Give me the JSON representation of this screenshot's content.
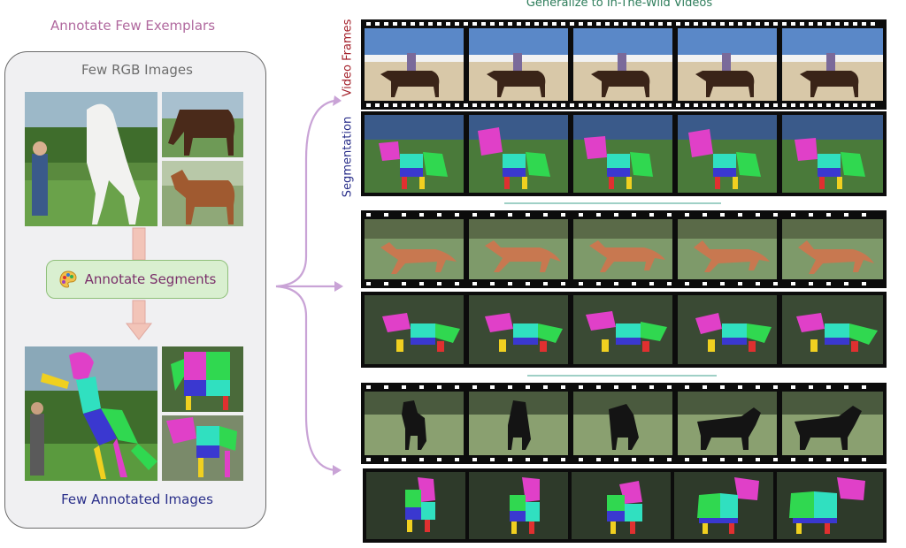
{
  "left": {
    "title": "Annotate Few Exemplars",
    "panel_header": "Few RGB Images",
    "action_label": "Annotate Segments",
    "panel_footer": "Few Annotated Images",
    "action_icon": "palette-icon"
  },
  "right": {
    "title": "Generalize to In-The-Wild Videos",
    "row_label_video": "Video Frames",
    "row_label_seg": "Segmentation"
  },
  "colors": {
    "left_title": "#b0689e",
    "right_title": "#2e7d5b",
    "arrow": "#c9a3d6",
    "connector": "#e0a8a0",
    "seg_magenta": "#e040c8",
    "seg_green": "#30d850",
    "seg_blue": "#3a38d0",
    "seg_cyan": "#30e0c0",
    "seg_red": "#e03030",
    "seg_yellow": "#f0d020"
  }
}
